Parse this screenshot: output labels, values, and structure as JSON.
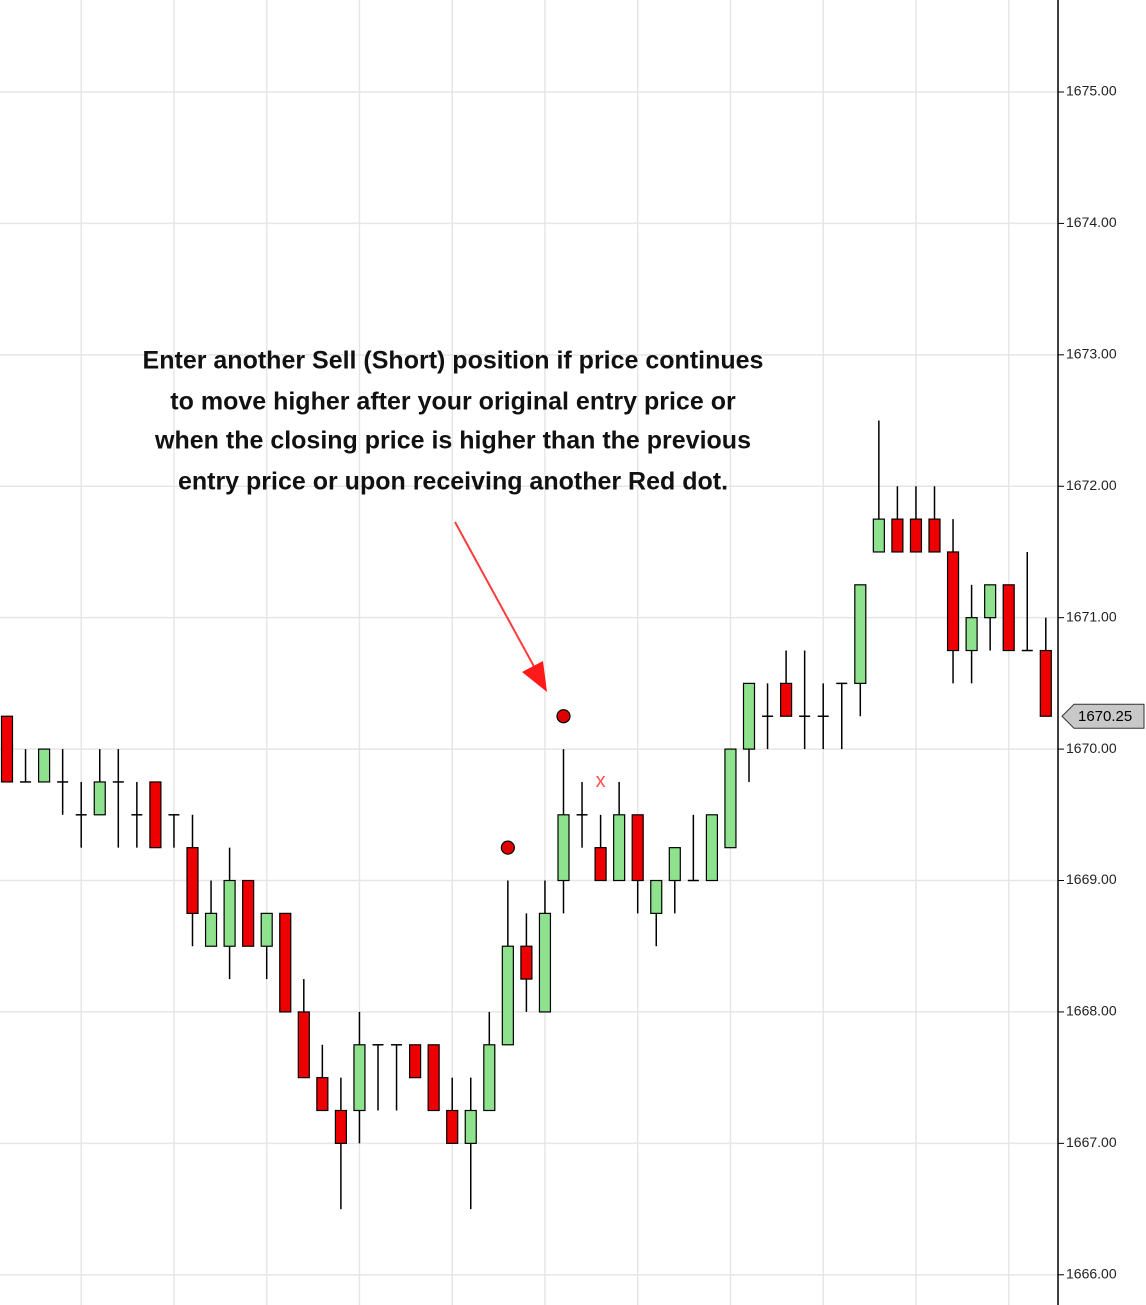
{
  "chart_data": {
    "type": "candlestick",
    "annotation": [
      "Enter another Sell (Short) position if price continues",
      "to move higher after your original entry price or",
      "when the closing price is higher than the previous",
      "entry price or upon receiving another Red dot."
    ],
    "open": [
      1670.25,
      1669.75,
      1669.75,
      1669.75,
      1669.5,
      1669.5,
      1669.75,
      1669.5,
      1669.75,
      1669.5,
      1669.25,
      1668.5,
      1668.5,
      1669,
      1668.5,
      1668.75,
      1668,
      1667.5,
      1667.25,
      1667.25,
      1667.75,
      1667.75,
      1667.75,
      1667.75,
      1667.25,
      1667,
      1667.25,
      1667.75,
      1668.5,
      1668,
      1669,
      1669.5,
      1669.25,
      1669,
      1669.5,
      1668.75,
      1669,
      1669,
      1669,
      1669.25,
      1670,
      1670.25,
      1670.5,
      1670.25,
      1670.25,
      1670.5,
      1670.5,
      1671.5,
      1671.75,
      1671.75,
      1671.75,
      1671.5,
      1670.75,
      1671,
      1671.25,
      1670.75,
      1670.75
    ],
    "high": [
      1670.25,
      1670,
      1670,
      1670,
      1669.75,
      1670,
      1670,
      1669.75,
      1669.75,
      1669.5,
      1669.5,
      1669,
      1669.25,
      1669,
      1668.75,
      1668.75,
      1668.25,
      1667.75,
      1667.5,
      1668,
      1667.75,
      1667.75,
      1667.75,
      1667.75,
      1667.5,
      1667.5,
      1668,
      1669,
      1668.75,
      1669,
      1670,
      1669.75,
      1669.5,
      1669.75,
      1669.5,
      1669,
      1669.25,
      1669.5,
      1669.5,
      1670,
      1670.5,
      1670.5,
      1670.75,
      1670.75,
      1670.5,
      1670.5,
      1671.25,
      1672.5,
      1672,
      1672,
      1672,
      1671.75,
      1671.25,
      1671.25,
      1671.25,
      1671.5,
      1671
    ],
    "low": [
      1669.75,
      1669.75,
      1669.75,
      1669.5,
      1669.25,
      1669.5,
      1669.25,
      1669.25,
      1669.25,
      1669.25,
      1668.5,
      1668.5,
      1668.25,
      1668.5,
      1668.25,
      1668,
      1667.5,
      1667.25,
      1666.5,
      1667,
      1667.25,
      1667.25,
      1667.5,
      1667.25,
      1667,
      1666.5,
      1667.25,
      1667.75,
      1668,
      1668,
      1668.75,
      1669.25,
      1669,
      1669,
      1668.75,
      1668.5,
      1668.75,
      1669,
      1669,
      1669.25,
      1669.75,
      1670,
      1670.25,
      1670,
      1670,
      1670,
      1670.25,
      1671.5,
      1671.5,
      1671.5,
      1671.5,
      1670.5,
      1670.5,
      1670.75,
      1670.75,
      1670.75,
      1670.25
    ],
    "close": [
      1669.75,
      1669.75,
      1670,
      1669.75,
      1669.5,
      1669.75,
      1669.75,
      1669.5,
      1669.25,
      1669.5,
      1668.75,
      1668.75,
      1669,
      1668.5,
      1668.75,
      1668,
      1667.5,
      1667.25,
      1667,
      1667.75,
      1667.75,
      1667.75,
      1667.5,
      1667.25,
      1667,
      1667.25,
      1667.75,
      1668.5,
      1668.25,
      1668.75,
      1669.5,
      1669.5,
      1669,
      1669.5,
      1669,
      1669,
      1669.25,
      1669,
      1669.5,
      1670,
      1670.5,
      1670.25,
      1670.25,
      1670.25,
      1670.25,
      1670.5,
      1671.25,
      1671.75,
      1671.5,
      1671.5,
      1671.5,
      1670.75,
      1671,
      1671.25,
      1670.75,
      1670.75,
      1670.25
    ],
    "sell_dots": [
      null,
      null,
      null,
      null,
      null,
      null,
      null,
      null,
      null,
      null,
      null,
      null,
      null,
      null,
      null,
      null,
      null,
      null,
      null,
      null,
      null,
      null,
      null,
      null,
      null,
      null,
      null,
      1669.25,
      null,
      null,
      1670.25,
      null,
      null,
      null,
      null,
      null,
      null,
      null,
      null,
      null,
      null,
      null,
      null,
      null,
      null,
      null,
      null,
      null,
      null,
      null,
      null,
      null,
      null,
      null,
      null,
      null,
      null
    ],
    "x_markers": [
      null,
      null,
      null,
      null,
      null,
      null,
      null,
      null,
      null,
      null,
      null,
      null,
      null,
      null,
      null,
      null,
      null,
      null,
      null,
      null,
      null,
      null,
      null,
      null,
      null,
      null,
      null,
      null,
      null,
      null,
      null,
      null,
      1669.75,
      null,
      null,
      null,
      null,
      null,
      null,
      null,
      null,
      null,
      null,
      null,
      null,
      null,
      null,
      null,
      null,
      null,
      null,
      null,
      null,
      null,
      null,
      null,
      null
    ],
    "x_marker_label": "x",
    "up_color": "#8ee28e",
    "down_color": "#ee0000",
    "dot_color": "#e00000",
    "last_price": 1670.25,
    "ylim": [
      1665.77,
      1675.7
    ],
    "yticks": [
      {
        "value": 1666,
        "label": "1666.00"
      },
      {
        "value": 1667,
        "label": "1667.00"
      },
      {
        "value": 1668,
        "label": "1668.00"
      },
      {
        "value": 1669,
        "label": "1669.00"
      },
      {
        "value": 1670,
        "label": "1670.00"
      },
      {
        "value": 1671,
        "label": "1671.00"
      },
      {
        "value": 1672,
        "label": "1672.00"
      },
      {
        "value": 1673,
        "label": "1673.00"
      },
      {
        "value": 1674,
        "label": "1674.00"
      },
      {
        "value": 1675,
        "label": "1675.00"
      }
    ],
    "grid": true
  }
}
